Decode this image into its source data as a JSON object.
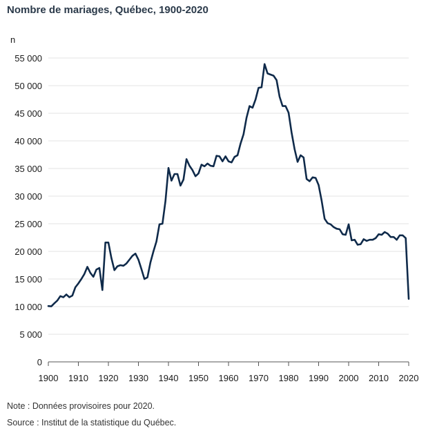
{
  "title": "Nombre de mariages, Québec, 1900-2020",
  "footer": {
    "note": "Note : Données provisoires pour 2020.",
    "source": "Source : Institut de la statistique du Québec."
  },
  "colors": {
    "line": "#0f2a4a",
    "grid": "#e3e3e3",
    "axis": "#555555"
  },
  "chart_data": {
    "type": "line",
    "title": "Nombre de mariages, Québec, 1900-2020",
    "ylabel": "n",
    "xlabel": "",
    "xlim": [
      1900,
      2020
    ],
    "ylim": [
      0,
      55000
    ],
    "grid": true,
    "x_ticks": [
      1900,
      1910,
      1920,
      1930,
      1940,
      1950,
      1960,
      1970,
      1980,
      1990,
      2000,
      2010,
      2020
    ],
    "x_tick_labels": [
      "1900",
      "1910",
      "1920",
      "1930",
      "1940",
      "1950",
      "1960",
      "1970",
      "1980",
      "1990",
      "2000",
      "2010",
      "2020"
    ],
    "y_ticks": [
      0,
      5000,
      10000,
      15000,
      20000,
      25000,
      30000,
      35000,
      40000,
      45000,
      50000,
      55000
    ],
    "y_tick_labels": [
      "0",
      "5 000",
      "10 000",
      "15 000",
      "20 000",
      "25 000",
      "30 000",
      "35 000",
      "40 000",
      "45 000",
      "50 000",
      "55 000"
    ],
    "series": [
      {
        "x": [
          1900,
          1901,
          1902,
          1903,
          1904,
          1905,
          1906,
          1907,
          1908,
          1909,
          1910,
          1911,
          1912,
          1913,
          1914,
          1915,
          1916,
          1917,
          1918,
          1919,
          1920,
          1921,
          1922,
          1923,
          1924,
          1925,
          1926,
          1927,
          1928,
          1929,
          1930,
          1931,
          1932,
          1933,
          1934,
          1935,
          1936,
          1937,
          1938,
          1939,
          1940,
          1941,
          1942,
          1943,
          1944,
          1945,
          1946,
          1947,
          1948,
          1949,
          1950,
          1951,
          1952,
          1953,
          1954,
          1955,
          1956,
          1957,
          1958,
          1959,
          1960,
          1961,
          1962,
          1963,
          1964,
          1965,
          1966,
          1967,
          1968,
          1969,
          1970,
          1971,
          1972,
          1973,
          1974,
          1975,
          1976,
          1977,
          1978,
          1979,
          1980,
          1981,
          1982,
          1983,
          1984,
          1985,
          1986,
          1987,
          1988,
          1989,
          1990,
          1991,
          1992,
          1993,
          1994,
          1995,
          1996,
          1997,
          1998,
          1999,
          2000,
          2001,
          2002,
          2003,
          2004,
          2005,
          2006,
          2007,
          2008,
          2009,
          2010,
          2011,
          2012,
          2013,
          2014,
          2015,
          2016,
          2017,
          2018,
          2019,
          2020
        ],
        "y": [
          10100,
          10050,
          10600,
          11100,
          11900,
          11700,
          12200,
          11700,
          12000,
          13500,
          14200,
          15000,
          15900,
          17200,
          16100,
          15400,
          16700,
          17000,
          13000,
          21600,
          21600,
          18800,
          16600,
          17300,
          17500,
          17400,
          17800,
          18500,
          19200,
          19600,
          18500,
          16800,
          15000,
          15300,
          18000,
          20000,
          21800,
          24900,
          25000,
          29100,
          35100,
          32800,
          34000,
          34000,
          31900,
          33000,
          36700,
          35500,
          34700,
          33600,
          34100,
          35700,
          35400,
          35900,
          35500,
          35400,
          37300,
          37200,
          36300,
          37200,
          36300,
          36100,
          37100,
          37400,
          39500,
          41200,
          44200,
          46300,
          46000,
          47500,
          49600,
          49700,
          53900,
          52200,
          52000,
          51800,
          51000,
          48000,
          46300,
          46300,
          45100,
          41500,
          38500,
          36200,
          37400,
          37000,
          33100,
          32700,
          33400,
          33300,
          32000,
          29200,
          25900,
          25100,
          24900,
          24400,
          24100,
          24000,
          23100,
          23000,
          24900,
          22000,
          22100,
          21200,
          21300,
          22200,
          21900,
          22100,
          22100,
          22400,
          23100,
          23000,
          23500,
          23200,
          22600,
          22600,
          22100,
          22900,
          22900,
          22400,
          11400
        ]
      }
    ]
  }
}
